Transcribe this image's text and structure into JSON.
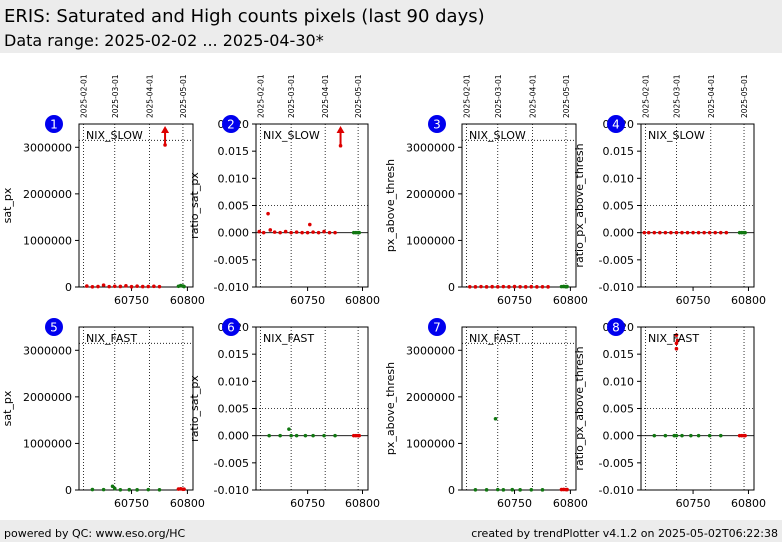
{
  "header": {
    "title": "ERIS: Saturated and High counts pixels (last 90 days)",
    "subtitle": "Data range: 2025-02-02 ... 2025-04-30*"
  },
  "footer": {
    "left": "powered by QC: www.eso.org/HC",
    "right": "created by trendPlotter v4.1.2 on 2025-05-02T06:22:38"
  },
  "colors": {
    "marker_circle": "#0000ee",
    "new_data": "#dd0000",
    "old_data": "#117711",
    "header_bg": "#ececec",
    "grid": "#000000"
  },
  "date_ticks": [
    "2025-02-01",
    "2025-03-01",
    "2025-04-01",
    "2025-05-01"
  ],
  "date_tick_mjd": [
    60707,
    60735,
    60766,
    60796
  ],
  "chart_data": [
    {
      "type": "scatter",
      "number": "1",
      "label": "NIX_SLOW",
      "ylabel": "sat_px",
      "xlim": [
        60703,
        60805
      ],
      "ylim": [
        0,
        3500000
      ],
      "yticks": [
        "0",
        "1000000",
        "2000000",
        "3000000"
      ],
      "ytick_values": [
        0,
        1000000,
        2000000,
        3000000
      ],
      "xticks": [
        "60750",
        "60800"
      ],
      "xtick_values": [
        60750,
        60800
      ],
      "threshold": 3150000,
      "series": [
        {
          "color": "red",
          "x": [
            60710,
            60715,
            60720,
            60725,
            60730,
            60735,
            60740,
            60745,
            60750,
            60755,
            60760,
            60765,
            60770,
            60775,
            60780
          ],
          "y": [
            20000,
            5000,
            10000,
            40000,
            8000,
            15000,
            12000,
            25000,
            6000,
            18000,
            9000,
            11000,
            14000,
            7000,
            3050000
          ]
        },
        {
          "color": "green",
          "x": [
            60792,
            60794,
            60796,
            60797
          ],
          "y": [
            15000,
            30000,
            20000,
            10000
          ]
        }
      ],
      "arrows": [
        {
          "x": 60780,
          "color": "red"
        }
      ]
    },
    {
      "type": "scatter",
      "number": "2",
      "label": "NIX_SLOW",
      "ylabel": "ratio_sat_px",
      "xlim": [
        60703,
        60805
      ],
      "ylim": [
        -0.01,
        0.02
      ],
      "yticks": [
        "-0.010",
        "-0.005",
        "0.000",
        "0.005",
        "0.010",
        "0.015",
        "0.020"
      ],
      "ytick_values": [
        -0.01,
        -0.005,
        0,
        0.005,
        0.01,
        0.015,
        0.02
      ],
      "xticks": [
        "60750",
        "60800"
      ],
      "xtick_values": [
        60750,
        60800
      ],
      "threshold": 0.005,
      "series": [
        {
          "color": "red",
          "x": [
            60706,
            60710,
            60714,
            60716,
            60720,
            60725,
            60730,
            60735,
            60740,
            60745,
            60750,
            60752,
            60755,
            60760,
            60765,
            60770,
            60775,
            60780
          ],
          "y": [
            0.0002,
            0.0,
            0.0035,
            0.0005,
            0.0001,
            0.0,
            0.0002,
            0.0,
            0.0001,
            0.0,
            0.0,
            0.0015,
            0.0001,
            0.0,
            0.0002,
            0.0,
            0.0,
            0.016
          ]
        },
        {
          "color": "green",
          "x": [
            60792,
            60794,
            60796,
            60797
          ],
          "y": [
            0.0,
            0.0,
            0.0,
            0.0
          ]
        }
      ],
      "arrows": [
        {
          "x": 60780,
          "color": "red"
        }
      ]
    },
    {
      "type": "scatter",
      "number": "3",
      "label": "NIX_SLOW",
      "ylabel": "px_above_thresh",
      "xlim": [
        60703,
        60805
      ],
      "ylim": [
        0,
        3500000
      ],
      "yticks": [
        "0",
        "1000000",
        "2000000",
        "3000000"
      ],
      "ytick_values": [
        0,
        1000000,
        2000000,
        3000000
      ],
      "xticks": [
        "60750",
        "60800"
      ],
      "xtick_values": [
        60750,
        60800
      ],
      "threshold": 3150000,
      "series": [
        {
          "color": "red",
          "x": [
            60710,
            60715,
            60720,
            60725,
            60730,
            60735,
            60740,
            60745,
            60750,
            60755,
            60760,
            60765,
            60770,
            60775,
            60780
          ],
          "y": [
            5000,
            3000,
            8000,
            4000,
            6000,
            5000,
            7000,
            3000,
            9000,
            5000,
            4000,
            6000,
            3000,
            5000,
            4000
          ]
        },
        {
          "color": "green",
          "x": [
            60792,
            60794,
            60796,
            60797
          ],
          "y": [
            8000,
            12000,
            6000,
            9000
          ]
        }
      ],
      "arrows": []
    },
    {
      "type": "scatter",
      "number": "4",
      "label": "NIX_SLOW",
      "ylabel": "ratio_px_above_thresh",
      "xlim": [
        60703,
        60805
      ],
      "ylim": [
        -0.01,
        0.02
      ],
      "yticks": [
        "-0.010",
        "-0.005",
        "0.000",
        "0.005",
        "0.010",
        "0.015",
        "0.020"
      ],
      "ytick_values": [
        -0.01,
        -0.005,
        0,
        0.005,
        0.01,
        0.015,
        0.02
      ],
      "xticks": [
        "60750",
        "60800"
      ],
      "xtick_values": [
        60750,
        60800
      ],
      "threshold": 0.005,
      "series": [
        {
          "color": "red",
          "x": [
            60706,
            60710,
            60715,
            60720,
            60725,
            60730,
            60735,
            60740,
            60745,
            60750,
            60755,
            60760,
            60765,
            60770,
            60775,
            60780
          ],
          "y": [
            0,
            0,
            0,
            0,
            0,
            0,
            0,
            0,
            0,
            0,
            0,
            0,
            0,
            0,
            0,
            0
          ]
        },
        {
          "color": "green",
          "x": [
            60792,
            60794,
            60796,
            60797
          ],
          "y": [
            0,
            0,
            0,
            0
          ]
        }
      ],
      "arrows": []
    },
    {
      "type": "scatter",
      "number": "5",
      "label": "NIX_FAST",
      "ylabel": "sat_px",
      "xlim": [
        60703,
        60805
      ],
      "ylim": [
        0,
        3500000
      ],
      "yticks": [
        "0",
        "1000000",
        "2000000",
        "3000000"
      ],
      "ytick_values": [
        0,
        1000000,
        2000000,
        3000000
      ],
      "xticks": [
        "60750",
        "60800"
      ],
      "xtick_values": [
        60750,
        60800
      ],
      "threshold": 3150000,
      "series": [
        {
          "color": "green",
          "x": [
            60715,
            60725,
            60733,
            60735,
            60740,
            60748,
            60755,
            60765,
            60775
          ],
          "y": [
            10000,
            8000,
            80000,
            30000,
            5000,
            6000,
            4000,
            7000,
            5000
          ]
        },
        {
          "color": "red",
          "x": [
            60792,
            60794,
            60796,
            60797
          ],
          "y": [
            20000,
            25000,
            15000,
            18000
          ]
        }
      ],
      "arrows": []
    },
    {
      "type": "scatter",
      "number": "6",
      "label": "NIX_FAST",
      "ylabel": "ratio_sat_px",
      "xlim": [
        60703,
        60805
      ],
      "ylim": [
        -0.01,
        0.02
      ],
      "yticks": [
        "-0.010",
        "-0.005",
        "0.000",
        "0.005",
        "0.010",
        "0.015",
        "0.020"
      ],
      "ytick_values": [
        -0.01,
        -0.005,
        0,
        0.005,
        0.01,
        0.015,
        0.02
      ],
      "xticks": [
        "60750",
        "60800"
      ],
      "xtick_values": [
        60750,
        60800
      ],
      "threshold": 0.005,
      "series": [
        {
          "color": "green",
          "x": [
            60715,
            60725,
            60733,
            60735,
            60740,
            60748,
            60755,
            60765,
            60775
          ],
          "y": [
            0,
            0,
            0.0012,
            0,
            0,
            0,
            0,
            0,
            0
          ]
        },
        {
          "color": "red",
          "x": [
            60792,
            60794,
            60796,
            60797
          ],
          "y": [
            0,
            0,
            0,
            0
          ]
        }
      ],
      "arrows": []
    },
    {
      "type": "scatter",
      "number": "7",
      "label": "NIX_FAST",
      "ylabel": "px_above_thresh",
      "xlim": [
        60703,
        60805
      ],
      "ylim": [
        0,
        3500000
      ],
      "yticks": [
        "0",
        "1000000",
        "2000000",
        "3000000"
      ],
      "ytick_values": [
        0,
        1000000,
        2000000,
        3000000
      ],
      "xticks": [
        "60750",
        "60800"
      ],
      "xtick_values": [
        60750,
        60800
      ],
      "threshold": 3150000,
      "series": [
        {
          "color": "green",
          "x": [
            60715,
            60725,
            60733,
            60735,
            60740,
            60748,
            60755,
            60765,
            60775
          ],
          "y": [
            5000,
            4000,
            1530000,
            8000,
            3000,
            6000,
            4000,
            5000,
            3000
          ]
        },
        {
          "color": "red",
          "x": [
            60792,
            60794,
            60796,
            60797
          ],
          "y": [
            10000,
            12000,
            8000,
            9000
          ]
        }
      ],
      "arrows": []
    },
    {
      "type": "scatter",
      "number": "8",
      "label": "NIX_FAST",
      "ylabel": "ratio_px_above_thresh",
      "xlim": [
        60703,
        60805
      ],
      "ylim": [
        -0.01,
        0.02
      ],
      "yticks": [
        "-0.010",
        "-0.005",
        "0.000",
        "0.005",
        "0.010",
        "0.015",
        "0.020"
      ],
      "ytick_values": [
        -0.01,
        -0.005,
        0,
        0.005,
        0.01,
        0.015,
        0.02
      ],
      "xticks": [
        "60750",
        "60800"
      ],
      "xtick_values": [
        60750,
        60800
      ],
      "threshold": 0.005,
      "series": [
        {
          "color": "green",
          "x": [
            60715,
            60725,
            60733,
            60735,
            60740,
            60748,
            60755,
            60765,
            60775
          ],
          "y": [
            0,
            0,
            0,
            0,
            0,
            0,
            0,
            0,
            0
          ]
        },
        {
          "color": "red",
          "x": [
            60735,
            60735,
            60735,
            60736,
            60792,
            60794,
            60796,
            60797
          ],
          "y": [
            0.0185,
            0.017,
            0.016,
            0.0175,
            0,
            0,
            0,
            0
          ]
        }
      ],
      "arrows": []
    }
  ]
}
